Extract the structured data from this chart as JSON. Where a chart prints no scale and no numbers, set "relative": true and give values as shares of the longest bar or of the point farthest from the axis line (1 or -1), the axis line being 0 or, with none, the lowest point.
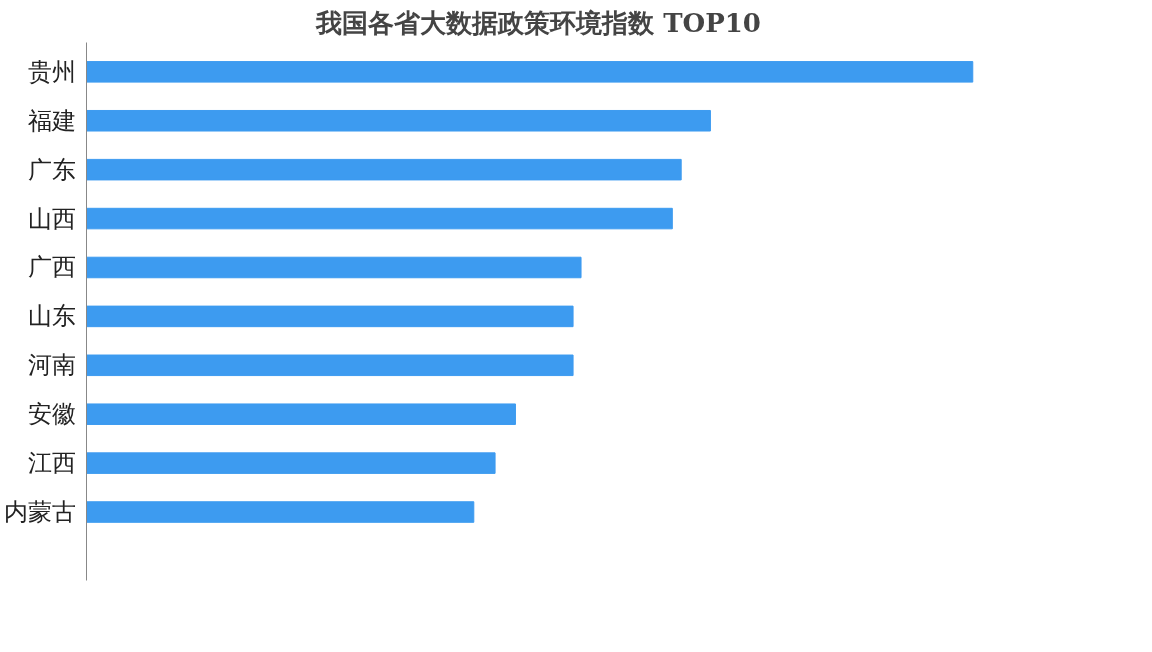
{
  "chart_data": {
    "type": "bar",
    "orientation": "horizontal",
    "relative": true,
    "title": "我国各省大数据政策环境指数 TOP10",
    "categories": [
      "贵州",
      "福建",
      "广东",
      "山西",
      "广西",
      "山东",
      "河南",
      "安徽",
      "江西",
      "内蒙古"
    ],
    "values": [
      1,
      0.704,
      0.671,
      0.661,
      0.558,
      0.549,
      0.549,
      0.484,
      0.461,
      0.437
    ],
    "color": "#3d9bf0",
    "grid": false
  }
}
